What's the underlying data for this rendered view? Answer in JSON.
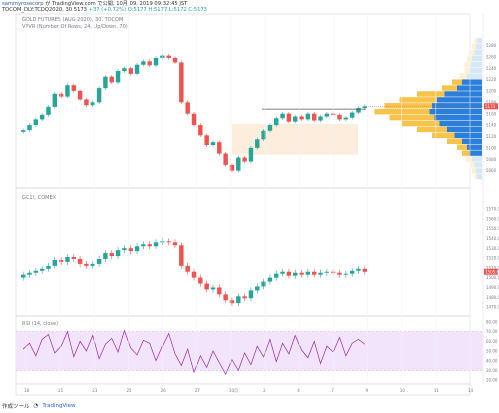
{
  "header": {
    "user": "sammyrosecorp",
    "published": "が TradingView.com で公開, 10月 09, 2019 09:32:45 JST",
    "ticker": "TOCOM_DLY:TCDQ2020, 30",
    "last": "5173",
    "change": "+37 (+0.72%)",
    "open": "O:5177",
    "high": "H:5177",
    "low": "L:5172",
    "close": "C:5173"
  },
  "colors": {
    "up": "#26a69a",
    "down": "#ef5350",
    "vpvr_up": "#f7c34b",
    "vpvr_down": "#2b7fd8",
    "vpvr_faded": "#d6e8f7",
    "rsi_line": "#9c27b0",
    "rsi_band": "#f1e4fb",
    "price_badge": "#ef5350"
  },
  "chart_data": [
    {
      "type": "candlestick",
      "title": "GOLD FUTURES (AUG 2020), 30, TOCOM",
      "subtitle": "VPVR (Number Of Rows, 24, Up/Down, 70)",
      "ylim": [
        5040,
        5300
      ],
      "y_ticks": [
        "5280",
        "5260",
        "5240",
        "5220",
        "5200",
        "5180",
        "5160",
        "5140",
        "5120",
        "5100",
        "5080",
        "5060"
      ],
      "price_label": "5173",
      "series": [
        {
          "name": "close",
          "values": [
            5131,
            5140,
            5150,
            5158,
            5172,
            5195,
            5190,
            5210,
            5200,
            5185,
            5175,
            5180,
            5205,
            5225,
            5215,
            5235,
            5240,
            5230,
            5246,
            5252,
            5245,
            5258,
            5262,
            5258,
            5250,
            5180,
            5160,
            5140,
            5122,
            5105,
            5110,
            5090,
            5070,
            5060,
            5083,
            5076,
            5100,
            5115,
            5130,
            5140,
            5152,
            5160,
            5146,
            5155,
            5150,
            5160,
            5148,
            5155,
            5160,
            5158,
            5150,
            5153,
            5162,
            5170,
            5173
          ]
        }
      ],
      "resistance_level": 5168,
      "value_area": [
        5088,
        5142
      ]
    },
    {
      "type": "line",
      "title": "GC1!, COMEX",
      "y_ticks": [
        "1570.0",
        "1560.0",
        "1550.0",
        "1540.0",
        "1530.0",
        "1520.0",
        "1510.0",
        "1500.0",
        "1490.0",
        "1480.0",
        "1470.0"
      ],
      "ylim": [
        1465,
        1575
      ],
      "price_label": "1505.6",
      "series": [
        {
          "name": "GC1!",
          "values": [
            1503,
            1505,
            1507,
            1509,
            1512,
            1518,
            1516,
            1521,
            1519,
            1514,
            1512,
            1514,
            1519,
            1525,
            1522,
            1528,
            1530,
            1527,
            1532,
            1534,
            1532,
            1536,
            1537,
            1536,
            1533,
            1512,
            1506,
            1500,
            1494,
            1488,
            1490,
            1483,
            1477,
            1474,
            1481,
            1479,
            1487,
            1491,
            1496,
            1500,
            1504,
            1506,
            1502,
            1505,
            1503,
            1506,
            1503,
            1505,
            1506,
            1505,
            1503,
            1504,
            1507,
            1509,
            1506
          ]
        }
      ]
    },
    {
      "type": "line",
      "title": "RSI (14, close)",
      "y_ticks": [
        "80.00",
        "70.00",
        "60.00",
        "50.00",
        "40.00",
        "30.00",
        "20.00"
      ],
      "ylim": [
        18,
        82
      ],
      "band": [
        30,
        70
      ],
      "series": [
        {
          "name": "RSI",
          "values": [
            52,
            58,
            45,
            62,
            67,
            48,
            55,
            70,
            44,
            60,
            50,
            66,
            42,
            57,
            63,
            49,
            71,
            53,
            46,
            61,
            58,
            40,
            55,
            68,
            47,
            35,
            52,
            28,
            45,
            33,
            50,
            38,
            26,
            41,
            30,
            48,
            36,
            55,
            44,
            62,
            39,
            58,
            47,
            66,
            51,
            43,
            60,
            37,
            55,
            49,
            64,
            45,
            58,
            62,
            57
          ]
        }
      ]
    }
  ],
  "x_axis": {
    "ticks": [
      "18",
      "21",
      "23",
      "25",
      "26",
      "27",
      "10月",
      "2",
      "4",
      "7",
      "9",
      "10",
      "11",
      "14"
    ]
  },
  "footer": {
    "published_on": "作成ツール",
    "brand": "TradingView"
  }
}
